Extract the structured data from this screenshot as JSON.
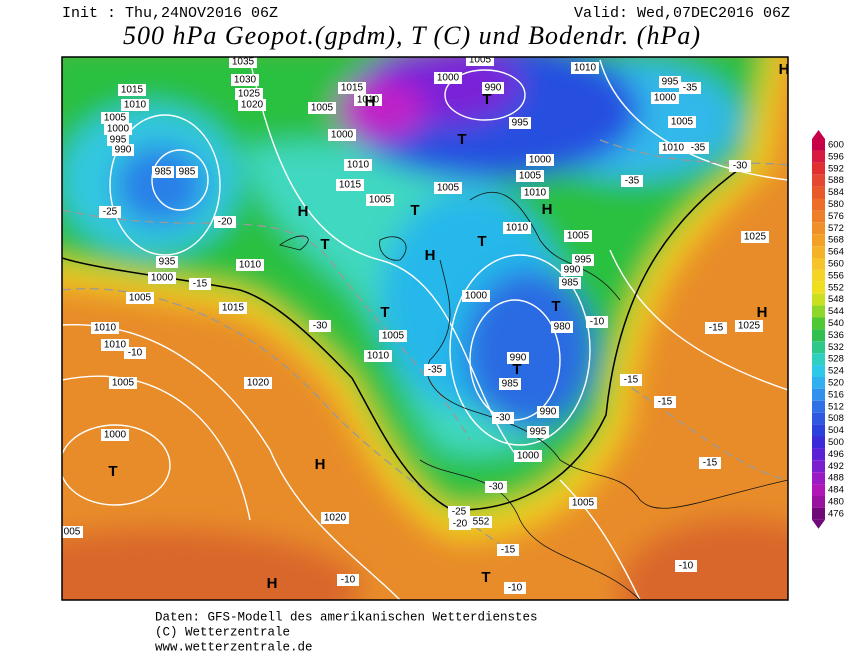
{
  "header": {
    "init": "Init : Thu,24NOV2016 06Z",
    "valid": "Valid: Wed,07DEC2016 06Z",
    "title": "500 hPa Geopot.(gpdm), T (C) und Bodendr. (hPa)"
  },
  "footer": [
    "Daten: GFS-Modell des amerikanischen Wetterdienstes",
    "(C) Wetterzentrale",
    "www.wetterzentrale.de"
  ],
  "legend": {
    "levels": [
      600,
      596,
      592,
      588,
      584,
      580,
      576,
      572,
      568,
      564,
      560,
      556,
      552,
      548,
      544,
      540,
      536,
      532,
      528,
      524,
      520,
      516,
      512,
      508,
      504,
      500,
      496,
      492,
      488,
      484,
      480,
      476
    ],
    "colors": [
      "#c8004a",
      "#d81a40",
      "#e03030",
      "#e44830",
      "#e85a2a",
      "#ec6c28",
      "#ee7e28",
      "#f09028",
      "#f2a028",
      "#f4b22a",
      "#f6c42a",
      "#f4d424",
      "#eee020",
      "#c8e020",
      "#8ed62a",
      "#50c834",
      "#30c050",
      "#30c88a",
      "#30d0c0",
      "#30c8e8",
      "#30b0ee",
      "#3090ec",
      "#3070e6",
      "#2e58e0",
      "#2c40dc",
      "#3a2ad8",
      "#5a22d4",
      "#7a1ece",
      "#9a1ac6",
      "#b016b8",
      "#9a12a0",
      "#700a78"
    ]
  },
  "map_labels": [
    "1035",
    "1030",
    "1025",
    "1020",
    "1015",
    "1010",
    "1005",
    "1000",
    "995",
    "990",
    "985",
    "985",
    "-25",
    "-20",
    "935",
    "1000",
    "1005",
    "-15",
    "1010",
    "1015",
    "1010",
    "1010",
    "-10",
    "1005",
    "1020",
    "1000",
    "005",
    "T",
    "H",
    "1020",
    "H",
    "-10",
    "-30",
    "1005",
    "1010",
    "-35",
    "1000",
    "H",
    "T",
    "T",
    "H",
    "T",
    "1005",
    "1015",
    "1010",
    "1005",
    "1000",
    "1010",
    "1015",
    "1005",
    "1000",
    "990",
    "T",
    "995",
    "1005",
    "1010",
    "995",
    "1000",
    "-35",
    "1005",
    "1010",
    "-35",
    "1000",
    "1005",
    "1010",
    "-35",
    "-30",
    "H",
    "T",
    "1010",
    "1005",
    "995",
    "990",
    "985",
    "T",
    "980",
    "-10",
    "1025",
    "1025",
    "H",
    "-15",
    "-15",
    "-15",
    "990",
    "T",
    "985",
    "-30",
    "990",
    "995",
    "1000",
    "-15",
    "-30",
    "-25",
    "-20",
    "552",
    "1005",
    "-15",
    "T",
    "-10",
    "-10",
    "H",
    "T",
    "H"
  ]
}
